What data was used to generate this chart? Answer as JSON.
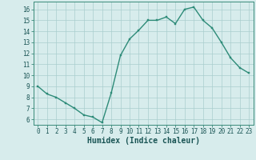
{
  "x": [
    0,
    1,
    2,
    3,
    4,
    5,
    6,
    7,
    8,
    9,
    10,
    11,
    12,
    13,
    14,
    15,
    16,
    17,
    18,
    19,
    20,
    21,
    22,
    23
  ],
  "y": [
    9.0,
    8.3,
    8.0,
    7.5,
    7.0,
    6.4,
    6.2,
    5.7,
    8.4,
    11.8,
    13.3,
    14.1,
    15.0,
    15.0,
    15.3,
    14.7,
    16.0,
    16.2,
    15.0,
    14.3,
    13.0,
    11.6,
    10.7,
    10.2
  ],
  "xlabel": "Humidex (Indice chaleur)",
  "xlim_min": -0.5,
  "xlim_max": 23.5,
  "ylim_min": 5.5,
  "ylim_max": 16.7,
  "yticks": [
    6,
    7,
    8,
    9,
    10,
    11,
    12,
    13,
    14,
    15,
    16
  ],
  "xticks": [
    0,
    1,
    2,
    3,
    4,
    5,
    6,
    7,
    8,
    9,
    10,
    11,
    12,
    13,
    14,
    15,
    16,
    17,
    18,
    19,
    20,
    21,
    22,
    23
  ],
  "line_color": "#2d8b78",
  "marker_color": "#2d8b78",
  "bg_color": "#d7ecec",
  "grid_color": "#aacece",
  "tick_fontsize": 5.5,
  "xlabel_fontsize": 7.0,
  "marker_size": 2.0,
  "line_width": 1.0
}
